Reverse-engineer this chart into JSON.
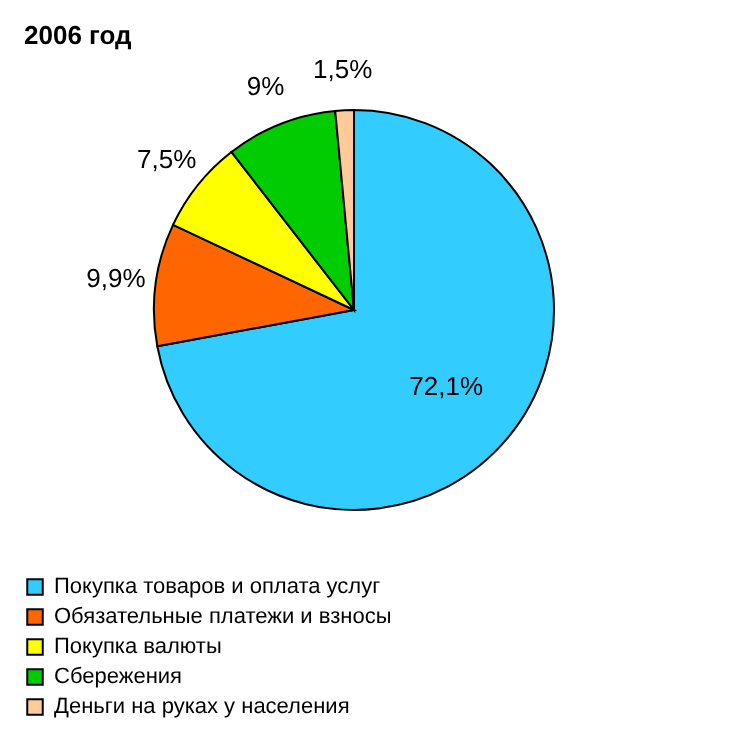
{
  "chart_data": {
    "type": "pie",
    "title": "2006 год",
    "categories": [
      "Покупка товаров и оплата услуг",
      "Обязательные платежи и взносы",
      "Покупка валюты",
      "Сбережения",
      "Деньги на руках у населения"
    ],
    "values": [
      72.1,
      9.9,
      7.5,
      9,
      1.5
    ],
    "colors": [
      "#33ccff",
      "#ff6600",
      "#ffff00",
      "#00cc00",
      "#ffcc99"
    ],
    "value_labels": [
      "72,1%",
      "9,9%",
      "7,5%",
      "9%",
      "1,5%"
    ],
    "legend": "bottom"
  }
}
